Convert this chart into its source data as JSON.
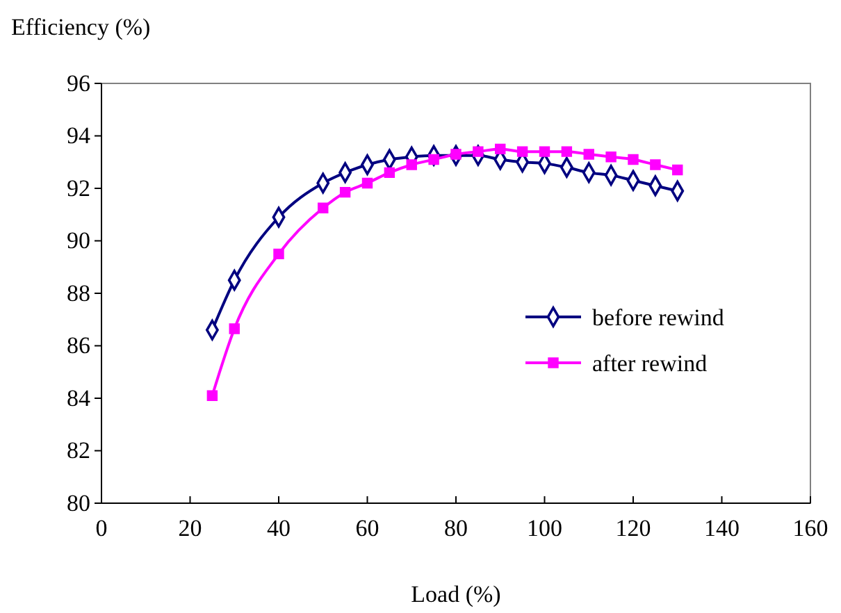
{
  "chart_data": {
    "type": "line",
    "xlabel": "Load (%)",
    "ylabel": "Efficiency (%)",
    "xlim": [
      0,
      160
    ],
    "xticks": [
      0,
      20,
      40,
      60,
      80,
      100,
      120,
      140,
      160
    ],
    "ylim": [
      80,
      96
    ],
    "yticks": [
      80,
      82,
      84,
      86,
      88,
      90,
      92,
      94,
      96
    ],
    "x": [
      25,
      30,
      40,
      50,
      55,
      60,
      65,
      70,
      75,
      80,
      85,
      90,
      95,
      100,
      105,
      110,
      115,
      120,
      125,
      130
    ],
    "series": [
      {
        "name": "before rewind",
        "color": "#000080",
        "marker": "diamond",
        "values": [
          86.6,
          88.5,
          90.9,
          92.2,
          92.6,
          92.9,
          93.1,
          93.2,
          93.25,
          93.25,
          93.25,
          93.1,
          93.0,
          92.95,
          92.8,
          92.6,
          92.5,
          92.3,
          92.1,
          91.9
        ]
      },
      {
        "name": "after rewind",
        "color": "#ff00ff",
        "marker": "square",
        "values": [
          84.1,
          86.65,
          89.5,
          91.25,
          91.85,
          92.2,
          92.6,
          92.9,
          93.1,
          93.3,
          93.4,
          93.5,
          93.4,
          93.4,
          93.4,
          93.3,
          93.2,
          93.1,
          92.9,
          92.7
        ]
      }
    ],
    "grid": false,
    "legend": "right"
  }
}
